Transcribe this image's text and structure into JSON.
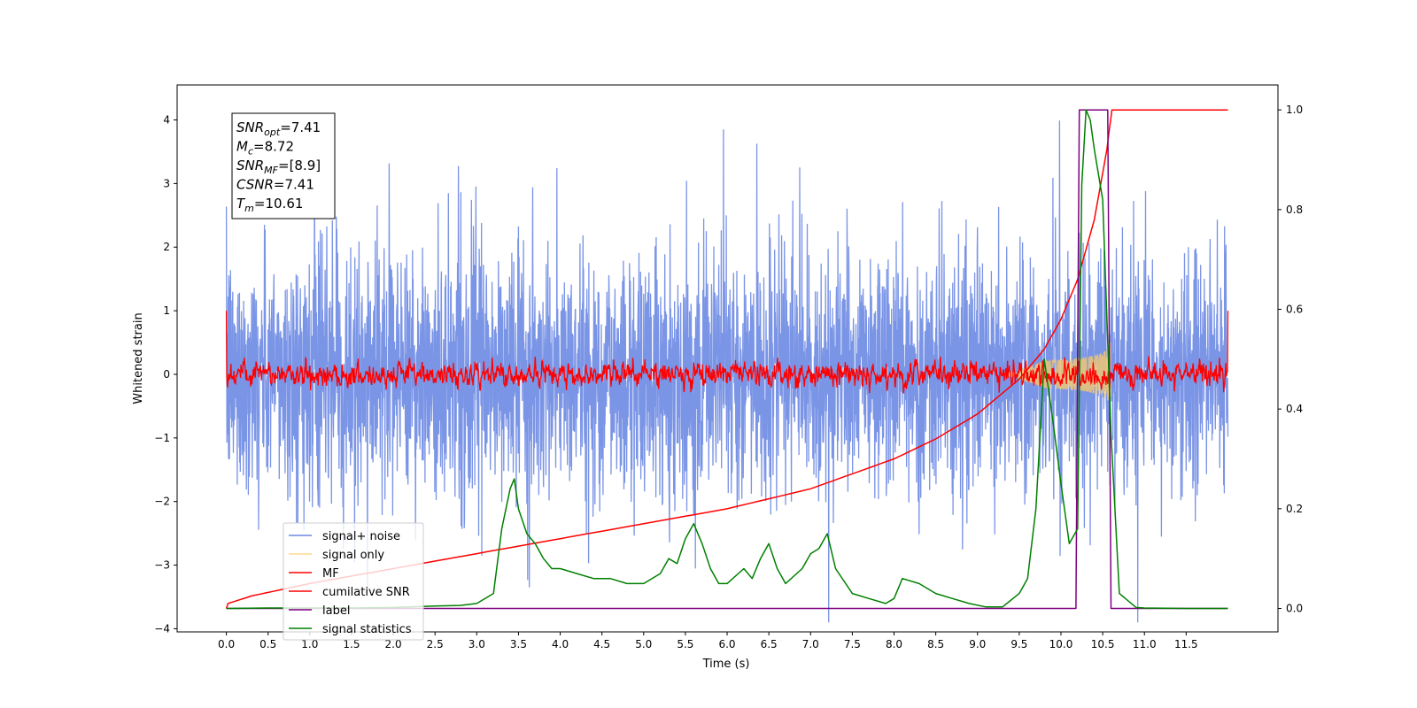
{
  "chart_data": {
    "type": "line",
    "xlabel": "Time (s)",
    "ylabel": "Whitened strain",
    "xlim": [
      -0.59,
      12.6
    ],
    "ylim": [
      -4.05,
      4.55
    ],
    "ylim_right": [
      -0.047,
      1.05
    ],
    "xticks": [
      "0.0",
      "0.5",
      "1.0",
      "1.5",
      "2.0",
      "2.5",
      "3.0",
      "3.5",
      "4.0",
      "4.5",
      "5.0",
      "5.5",
      "6.0",
      "6.5",
      "7.0",
      "7.5",
      "8.0",
      "8.5",
      "9.0",
      "9.5",
      "10.0",
      "10.5",
      "11.0",
      "11.5"
    ],
    "yticks_left": [
      "−4",
      "−3",
      "−2",
      "−1",
      "0",
      "1",
      "2",
      "3",
      "4"
    ],
    "yticks_right": [
      "0.0",
      "0.2",
      "0.4",
      "0.6",
      "0.8",
      "1.0"
    ],
    "annotation": [
      {
        "sym": "SNR",
        "sub": "opt",
        "val": "=7.41"
      },
      {
        "sym": "M",
        "sub": "c",
        "val": "=8.72"
      },
      {
        "sym": "SNR",
        "sub": "MF",
        "val": "=[8.9]"
      },
      {
        "sym": "CSNR",
        "sub": "",
        "val": "=7.41"
      },
      {
        "sym": "T",
        "sub": "m",
        "val": "=10.61"
      }
    ],
    "series": [
      {
        "name": "signal+ noise",
        "color": "#6b88e3",
        "axis": "left",
        "description": "white noise, amplitude approx. ±2.5, spikes to ±4",
        "x_range": [
          0.0,
          12.0
        ]
      },
      {
        "name": "signal only",
        "color": "#ffcc66",
        "axis": "left",
        "description": "chirp envelope growing to ±0.55 near t=10.6",
        "x_range": [
          9.3,
          10.6
        ]
      },
      {
        "name": "MF",
        "color": "#ff0000",
        "axis": "left",
        "description": "matched filter output, approx. ±0.25 around 0",
        "x_range": [
          0.0,
          12.0
        ]
      },
      {
        "name": "cumilative SNR",
        "color": "#ff0000",
        "axis": "right",
        "x": [
          0.0,
          0.02,
          0.3,
          1.0,
          2.0,
          3.0,
          4.0,
          5.0,
          6.0,
          7.0,
          8.0,
          8.5,
          9.0,
          9.5,
          9.8,
          10.0,
          10.2,
          10.4,
          10.55,
          10.61,
          12.0
        ],
        "y": [
          0.0,
          0.01,
          0.025,
          0.05,
          0.08,
          0.11,
          0.14,
          0.17,
          0.2,
          0.24,
          0.3,
          0.34,
          0.39,
          0.46,
          0.52,
          0.58,
          0.66,
          0.78,
          0.92,
          1.0,
          1.0
        ]
      },
      {
        "name": "label",
        "color": "#800080",
        "axis": "right",
        "x": [
          0.0,
          10.18,
          10.22,
          10.56,
          10.6,
          12.0
        ],
        "y": [
          0.0,
          0.0,
          1.0,
          1.0,
          0.0,
          0.0
        ]
      },
      {
        "name": "signal statistics",
        "color": "#008000",
        "axis": "right",
        "x": [
          0.0,
          0.5,
          1.0,
          1.5,
          2.0,
          2.5,
          2.8,
          3.0,
          3.2,
          3.3,
          3.4,
          3.45,
          3.5,
          3.6,
          3.7,
          3.8,
          3.9,
          4.0,
          4.2,
          4.4,
          4.6,
          4.8,
          5.0,
          5.2,
          5.3,
          5.4,
          5.5,
          5.6,
          5.7,
          5.8,
          5.9,
          6.0,
          6.2,
          6.3,
          6.4,
          6.5,
          6.6,
          6.7,
          6.9,
          7.0,
          7.1,
          7.2,
          7.3,
          7.5,
          7.7,
          7.9,
          8.0,
          8.1,
          8.3,
          8.5,
          8.7,
          8.9,
          9.1,
          9.3,
          9.5,
          9.6,
          9.7,
          9.8,
          9.9,
          10.0,
          10.1,
          10.2,
          10.25,
          10.3,
          10.35,
          10.4,
          10.5,
          10.6,
          10.7,
          10.9,
          11.0,
          11.5,
          12.0
        ],
        "y": [
          0.0,
          0.001,
          0.001,
          0.001,
          0.002,
          0.005,
          0.006,
          0.01,
          0.03,
          0.16,
          0.24,
          0.26,
          0.2,
          0.15,
          0.13,
          0.1,
          0.08,
          0.08,
          0.07,
          0.06,
          0.06,
          0.05,
          0.05,
          0.07,
          0.1,
          0.09,
          0.14,
          0.17,
          0.13,
          0.08,
          0.05,
          0.05,
          0.08,
          0.06,
          0.1,
          0.13,
          0.08,
          0.05,
          0.08,
          0.11,
          0.12,
          0.15,
          0.08,
          0.03,
          0.02,
          0.01,
          0.02,
          0.06,
          0.05,
          0.03,
          0.02,
          0.01,
          0.003,
          0.003,
          0.03,
          0.06,
          0.2,
          0.5,
          0.38,
          0.25,
          0.13,
          0.16,
          0.85,
          1.0,
          0.98,
          0.92,
          0.82,
          0.35,
          0.03,
          0.002,
          0.001,
          0.0,
          0.0
        ]
      }
    ]
  }
}
